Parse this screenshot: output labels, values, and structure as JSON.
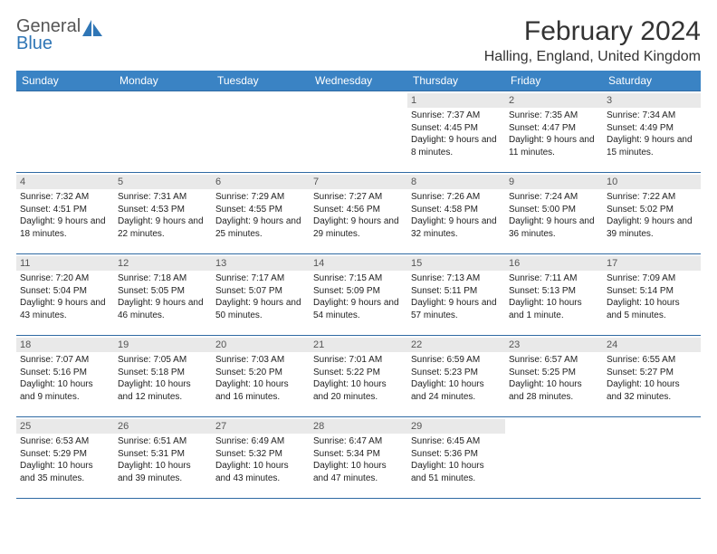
{
  "logo": {
    "line1": "General",
    "line2": "Blue"
  },
  "title": "February 2024",
  "location": "Halling, England, United Kingdom",
  "colors": {
    "header_bg": "#3a83c4",
    "header_text": "#ffffff",
    "rule": "#2f6aa3",
    "daybar_bg": "#e9e9e9",
    "body_text": "#222222",
    "logo_gray": "#555555",
    "logo_blue": "#2f76b6"
  },
  "day_headers": [
    "Sunday",
    "Monday",
    "Tuesday",
    "Wednesday",
    "Thursday",
    "Friday",
    "Saturday"
  ],
  "weeks": [
    [
      null,
      null,
      null,
      null,
      {
        "n": "1",
        "r": "7:37 AM",
        "s": "4:45 PM",
        "d": "9 hours and 8 minutes."
      },
      {
        "n": "2",
        "r": "7:35 AM",
        "s": "4:47 PM",
        "d": "9 hours and 11 minutes."
      },
      {
        "n": "3",
        "r": "7:34 AM",
        "s": "4:49 PM",
        "d": "9 hours and 15 minutes."
      }
    ],
    [
      {
        "n": "4",
        "r": "7:32 AM",
        "s": "4:51 PM",
        "d": "9 hours and 18 minutes."
      },
      {
        "n": "5",
        "r": "7:31 AM",
        "s": "4:53 PM",
        "d": "9 hours and 22 minutes."
      },
      {
        "n": "6",
        "r": "7:29 AM",
        "s": "4:55 PM",
        "d": "9 hours and 25 minutes."
      },
      {
        "n": "7",
        "r": "7:27 AM",
        "s": "4:56 PM",
        "d": "9 hours and 29 minutes."
      },
      {
        "n": "8",
        "r": "7:26 AM",
        "s": "4:58 PM",
        "d": "9 hours and 32 minutes."
      },
      {
        "n": "9",
        "r": "7:24 AM",
        "s": "5:00 PM",
        "d": "9 hours and 36 minutes."
      },
      {
        "n": "10",
        "r": "7:22 AM",
        "s": "5:02 PM",
        "d": "9 hours and 39 minutes."
      }
    ],
    [
      {
        "n": "11",
        "r": "7:20 AM",
        "s": "5:04 PM",
        "d": "9 hours and 43 minutes."
      },
      {
        "n": "12",
        "r": "7:18 AM",
        "s": "5:05 PM",
        "d": "9 hours and 46 minutes."
      },
      {
        "n": "13",
        "r": "7:17 AM",
        "s": "5:07 PM",
        "d": "9 hours and 50 minutes."
      },
      {
        "n": "14",
        "r": "7:15 AM",
        "s": "5:09 PM",
        "d": "9 hours and 54 minutes."
      },
      {
        "n": "15",
        "r": "7:13 AM",
        "s": "5:11 PM",
        "d": "9 hours and 57 minutes."
      },
      {
        "n": "16",
        "r": "7:11 AM",
        "s": "5:13 PM",
        "d": "10 hours and 1 minute."
      },
      {
        "n": "17",
        "r": "7:09 AM",
        "s": "5:14 PM",
        "d": "10 hours and 5 minutes."
      }
    ],
    [
      {
        "n": "18",
        "r": "7:07 AM",
        "s": "5:16 PM",
        "d": "10 hours and 9 minutes."
      },
      {
        "n": "19",
        "r": "7:05 AM",
        "s": "5:18 PM",
        "d": "10 hours and 12 minutes."
      },
      {
        "n": "20",
        "r": "7:03 AM",
        "s": "5:20 PM",
        "d": "10 hours and 16 minutes."
      },
      {
        "n": "21",
        "r": "7:01 AM",
        "s": "5:22 PM",
        "d": "10 hours and 20 minutes."
      },
      {
        "n": "22",
        "r": "6:59 AM",
        "s": "5:23 PM",
        "d": "10 hours and 24 minutes."
      },
      {
        "n": "23",
        "r": "6:57 AM",
        "s": "5:25 PM",
        "d": "10 hours and 28 minutes."
      },
      {
        "n": "24",
        "r": "6:55 AM",
        "s": "5:27 PM",
        "d": "10 hours and 32 minutes."
      }
    ],
    [
      {
        "n": "25",
        "r": "6:53 AM",
        "s": "5:29 PM",
        "d": "10 hours and 35 minutes."
      },
      {
        "n": "26",
        "r": "6:51 AM",
        "s": "5:31 PM",
        "d": "10 hours and 39 minutes."
      },
      {
        "n": "27",
        "r": "6:49 AM",
        "s": "5:32 PM",
        "d": "10 hours and 43 minutes."
      },
      {
        "n": "28",
        "r": "6:47 AM",
        "s": "5:34 PM",
        "d": "10 hours and 47 minutes."
      },
      {
        "n": "29",
        "r": "6:45 AM",
        "s": "5:36 PM",
        "d": "10 hours and 51 minutes."
      },
      null,
      null
    ]
  ],
  "labels": {
    "sunrise": "Sunrise:",
    "sunset": "Sunset:",
    "daylight": "Daylight:"
  }
}
